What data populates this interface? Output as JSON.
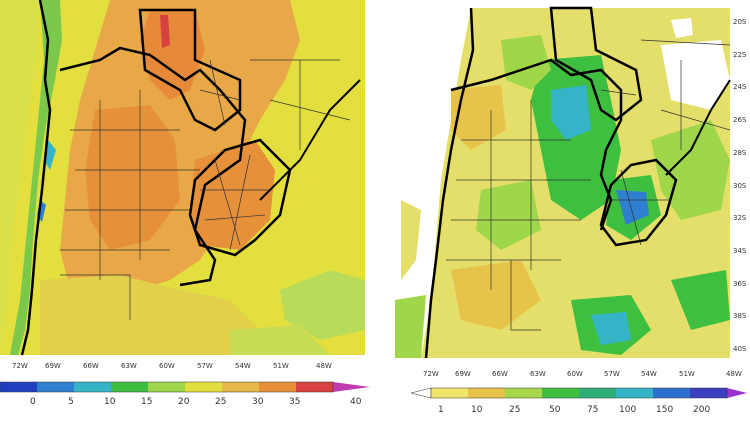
{
  "left_map": {
    "lon_labels": [
      "72W",
      "69W",
      "66W",
      "63W",
      "60W",
      "57W",
      "54W",
      "51W",
      "48W"
    ],
    "colorbar_labels": [
      "0",
      "5",
      "10",
      "15",
      "20",
      "25",
      "30",
      "35",
      "40"
    ],
    "colorbar_colors": [
      "#1f3fbf",
      "#2f7fd0",
      "#35b4c8",
      "#3fbf3f",
      "#9fd64a",
      "#e3df3f",
      "#e9b84a",
      "#e6903a",
      "#d94040",
      "#c03ab0"
    ]
  },
  "right_map": {
    "lat_labels": [
      "20S",
      "22S",
      "24S",
      "26S",
      "28S",
      "30S",
      "32S",
      "34S",
      "36S",
      "38S",
      "40S"
    ],
    "lon_labels": [
      "72W",
      "69W",
      "66W",
      "63W",
      "60W",
      "57W",
      "54W",
      "51W",
      "48W"
    ],
    "colorbar_labels": [
      "1",
      "10",
      "25",
      "50",
      "75",
      "100",
      "150",
      "200"
    ],
    "colorbar_colors": [
      "#ffffff",
      "#f2e36a",
      "#e8c34a",
      "#a6d84a",
      "#3fbf3f",
      "#2fae7a",
      "#35b4c8",
      "#2f6fd0",
      "#9b2fcf"
    ]
  }
}
